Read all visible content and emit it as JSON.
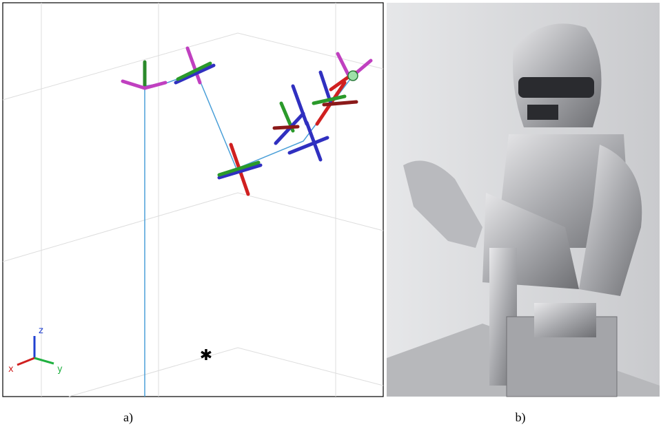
{
  "panels": [
    {
      "label": "a)",
      "axis_labels": {
        "x": "x",
        "y": "y",
        "z": "z"
      }
    },
    {
      "label": "b)"
    }
  ]
}
